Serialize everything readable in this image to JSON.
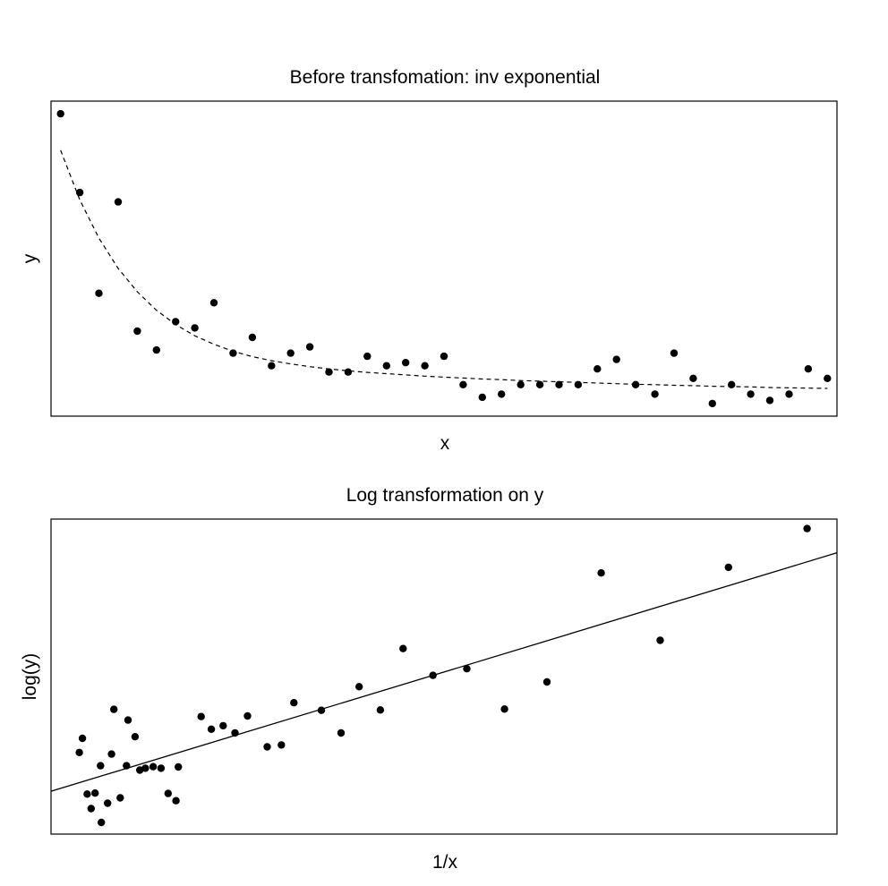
{
  "chart_data": [
    {
      "type": "scatter",
      "title": "Before transfomation: inv exponential",
      "xlabel": "x",
      "ylabel": "y",
      "axes_visible": false,
      "xlim": [
        0.5,
        41.5
      ],
      "ylim": [
        0,
        100
      ],
      "points_x": [
        1,
        2,
        3,
        4,
        5,
        6,
        7,
        8,
        9,
        10,
        11,
        12,
        13,
        14,
        15,
        16,
        17,
        18,
        19,
        20,
        21,
        22,
        23,
        24,
        25,
        26,
        27,
        28,
        29,
        30,
        31,
        32,
        33,
        34,
        35,
        36,
        37,
        38,
        39,
        40,
        41
      ],
      "points_y": [
        96,
        71,
        39,
        68,
        27,
        21,
        30,
        28,
        36,
        20,
        25,
        16,
        20,
        22,
        14,
        14,
        19,
        16,
        17,
        16,
        19,
        10,
        6,
        7,
        10,
        10,
        10,
        10,
        15,
        18,
        10,
        7,
        20,
        12,
        4,
        10,
        7,
        5,
        7,
        15,
        12
      ],
      "fit": {
        "style": "dashed",
        "x": [
          1,
          2,
          3,
          4,
          5,
          6,
          7,
          8,
          9,
          10,
          11,
          12,
          13,
          14,
          15,
          16,
          17,
          18,
          19,
          20,
          21,
          22,
          23,
          24,
          25,
          26,
          27,
          28,
          29,
          30,
          31,
          32,
          33,
          34,
          35,
          36,
          37,
          38,
          39,
          40,
          41
        ],
        "y": [
          84.4,
          68.7,
          56.5,
          46.9,
          39.5,
          33.6,
          29.1,
          25.5,
          22.8,
          20.6,
          18.9,
          17.6,
          16.6,
          15.7,
          15.0,
          14.4,
          13.9,
          13.5,
          13.1,
          12.7,
          12.4,
          12.1,
          11.8,
          11.6,
          11.3,
          11.1,
          10.9,
          10.7,
          10.5,
          10.3,
          10.1,
          10.0,
          9.8,
          9.7,
          9.5,
          9.4,
          9.3,
          9.1,
          9.0,
          8.9,
          8.8
        ]
      }
    },
    {
      "type": "scatter",
      "title": "Log transformation on y",
      "xlabel": "1/x",
      "ylabel": "log(y)",
      "axes_visible": false,
      "xlim": [
        0,
        1
      ],
      "ylim": [
        0,
        1
      ],
      "points_x": [
        0.036,
        0.04,
        0.046,
        0.051,
        0.056,
        0.063,
        0.064,
        0.072,
        0.077,
        0.08,
        0.088,
        0.096,
        0.098,
        0.107,
        0.113,
        0.12,
        0.13,
        0.14,
        0.149,
        0.159,
        0.162,
        0.191,
        0.204,
        0.219,
        0.234,
        0.25,
        0.275,
        0.293,
        0.309,
        0.344,
        0.369,
        0.392,
        0.419,
        0.448,
        0.486,
        0.529,
        0.577,
        0.631,
        0.7,
        0.775,
        0.862,
        0.962
      ],
      "points_y": [
        0.259,
        0.304,
        0.127,
        0.081,
        0.13,
        0.217,
        0.037,
        0.098,
        0.254,
        0.396,
        0.115,
        0.217,
        0.362,
        0.309,
        0.203,
        0.209,
        0.214,
        0.209,
        0.129,
        0.106,
        0.213,
        0.373,
        0.333,
        0.344,
        0.321,
        0.375,
        0.277,
        0.283,
        0.417,
        0.393,
        0.321,
        0.468,
        0.394,
        0.589,
        0.504,
        0.525,
        0.397,
        0.483,
        0.829,
        0.615,
        0.847,
        0.97
      ],
      "fit": {
        "style": "solid",
        "line": [
          [
            0,
            0.136
          ],
          [
            1,
            0.893
          ]
        ]
      }
    }
  ]
}
